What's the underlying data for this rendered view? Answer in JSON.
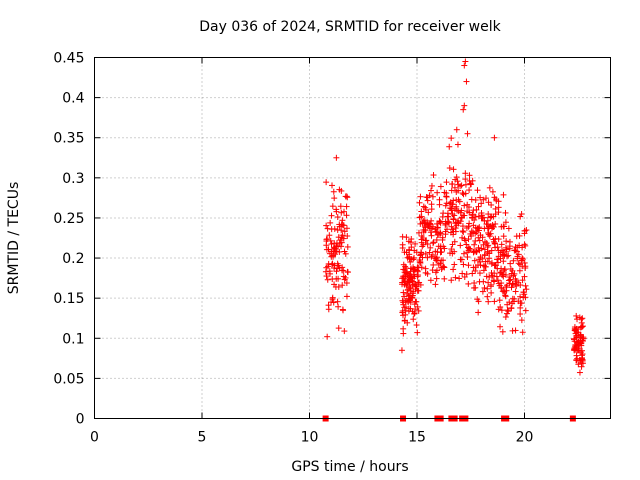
{
  "chart_data": {
    "type": "scatter",
    "title": "Day 036 of 2024, SRMTID for receiver welk",
    "xlabel": "GPS time / hours",
    "ylabel": "SRMTID / TECUs",
    "xlim": [
      0,
      24
    ],
    "ylim": [
      0,
      0.45
    ],
    "xticks": [
      0,
      5,
      10,
      15,
      20
    ],
    "xtick_labels": [
      "0",
      "5",
      "10",
      "15",
      "20"
    ],
    "yticks": [
      0,
      0.05,
      0.1,
      0.15,
      0.2,
      0.25,
      0.3,
      0.35,
      0.4,
      0.45
    ],
    "ytick_labels": [
      "0",
      "0.05",
      "0.1",
      "0.15",
      "0.2",
      "0.25",
      "0.3",
      "0.35",
      "0.4",
      "0.45"
    ],
    "grid": true,
    "marker_color": "#ff0000",
    "series": [
      {
        "name": "SRMTID",
        "marker": "plus",
        "clusters": [
          {
            "x_start": 10.75,
            "x_end": 11.8,
            "y_min": 0.09,
            "y_max": 0.325,
            "count": 120,
            "seed": 11
          },
          {
            "x_start": 14.3,
            "x_end": 15.1,
            "y_min": 0.085,
            "y_max": 0.255,
            "count": 140,
            "seed": 23
          },
          {
            "x_start": 15.1,
            "x_end": 16.3,
            "y_min": 0.14,
            "y_max": 0.31,
            "count": 130,
            "seed": 37
          },
          {
            "x_start": 16.3,
            "x_end": 17.6,
            "y_min": 0.14,
            "y_max": 0.36,
            "count": 140,
            "seed": 41
          },
          {
            "x_start": 17.6,
            "x_end": 18.8,
            "y_min": 0.11,
            "y_max": 0.33,
            "count": 150,
            "seed": 53
          },
          {
            "x_start": 18.8,
            "x_end": 20.1,
            "y_min": 0.08,
            "y_max": 0.29,
            "count": 140,
            "seed": 67
          },
          {
            "x_start": 22.3,
            "x_end": 22.75,
            "y_min": 0.05,
            "y_max": 0.145,
            "count": 80,
            "seed": 79
          }
        ],
        "points": [
          {
            "x": 17.2,
            "y": 0.44
          },
          {
            "x": 17.25,
            "y": 0.445
          },
          {
            "x": 17.3,
            "y": 0.42
          },
          {
            "x": 17.15,
            "y": 0.385
          },
          {
            "x": 17.2,
            "y": 0.39
          },
          {
            "x": 17.35,
            "y": 0.355
          },
          {
            "x": 16.85,
            "y": 0.36
          },
          {
            "x": 18.6,
            "y": 0.35
          },
          {
            "x": 11.25,
            "y": 0.325
          },
          {
            "x": 14.3,
            "y": 0.085
          }
        ]
      },
      {
        "name": "zero-level markers",
        "marker": "square",
        "points": [
          {
            "x": 10.75,
            "y": 0
          },
          {
            "x": 14.35,
            "y": 0
          },
          {
            "x": 15.95,
            "y": 0
          },
          {
            "x": 16.1,
            "y": 0
          },
          {
            "x": 16.6,
            "y": 0
          },
          {
            "x": 16.75,
            "y": 0
          },
          {
            "x": 17.1,
            "y": 0
          },
          {
            "x": 17.25,
            "y": 0
          },
          {
            "x": 19.05,
            "y": 0
          },
          {
            "x": 19.15,
            "y": 0
          },
          {
            "x": 22.25,
            "y": 0
          }
        ]
      }
    ]
  }
}
